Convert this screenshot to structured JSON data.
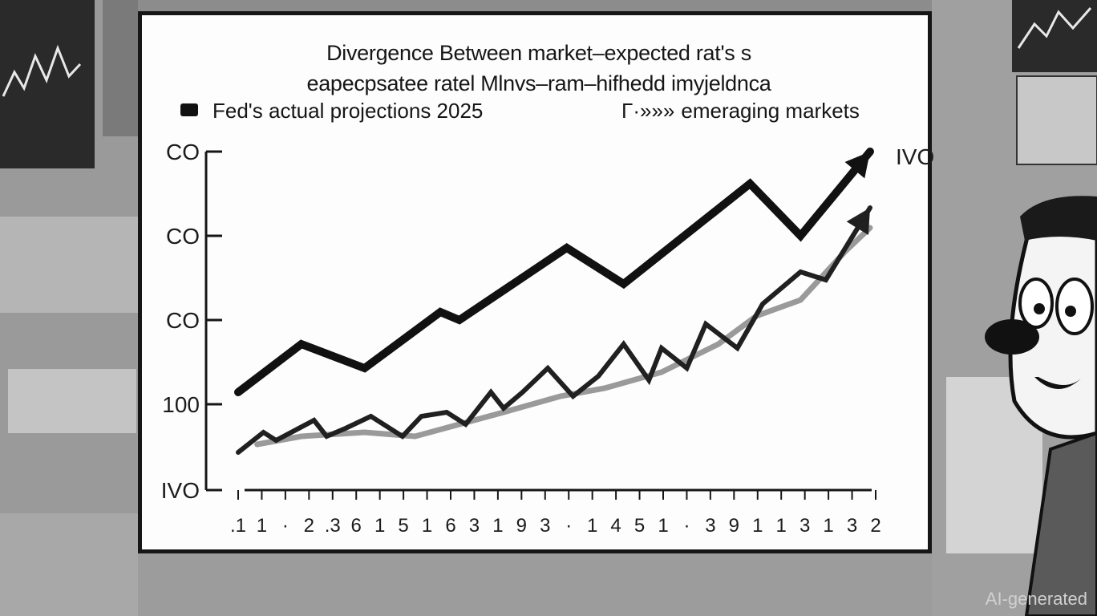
{
  "chart_data": {
    "type": "line",
    "title": "Divergence Between market–expected rat's s",
    "subtitle": "eapecpsatee ratel Mlnvs–ram–hifhedd imyjeldnca",
    "legend": [
      "Fed's actual projections  2025",
      "emeraging markets"
    ],
    "legend_marker_2": "Γ·»»»",
    "legend_placement": "top",
    "x_tick_labels": [
      ".1",
      "1",
      "·",
      "2",
      ".3",
      "6",
      "1",
      "5",
      "1",
      "6",
      "3",
      "1",
      "9",
      "3",
      "·",
      "1",
      "4",
      "5",
      "1",
      "·",
      "3",
      "9",
      "1",
      "1",
      "3",
      "1",
      "3",
      "2"
    ],
    "y_tick_labels": [
      "CO",
      "CO",
      "CO",
      "100",
      "IVO"
    ],
    "end_label": "IVO",
    "x_range": [
      0,
      10
    ],
    "y_range": [
      0,
      4
    ],
    "series": [
      {
        "name": "Fed's actual projections  2025",
        "color": "#111111",
        "x": [
          0,
          1,
          2,
          3.2,
          3.5,
          5.2,
          6.1,
          8.1,
          8.9,
          10
        ],
        "y": [
          1.0,
          1.6,
          1.3,
          2.0,
          1.9,
          2.8,
          2.35,
          3.6,
          2.95,
          4.0
        ]
      },
      {
        "name": "emeraging markets",
        "color": "#202020",
        "x": [
          0,
          0.4,
          0.6,
          1.2,
          1.4,
          1.7,
          2.1,
          2.6,
          2.9,
          3.3,
          3.6,
          4.0,
          4.2,
          4.5,
          4.9,
          5.3,
          5.7,
          6.1,
          6.5,
          6.7,
          7.1,
          7.4,
          7.9,
          8.3,
          8.9,
          9.3,
          10
        ],
        "y": [
          0.25,
          0.5,
          0.4,
          0.65,
          0.45,
          0.55,
          0.7,
          0.45,
          0.7,
          0.75,
          0.6,
          1.0,
          0.8,
          1.0,
          1.3,
          0.95,
          1.2,
          1.6,
          1.15,
          1.55,
          1.3,
          1.85,
          1.55,
          2.1,
          2.5,
          2.4,
          3.3
        ]
      },
      {
        "name": "",
        "color": "#9a9a9a",
        "x": [
          0.3,
          1.0,
          2.0,
          2.8,
          3.5,
          4.2,
          5.1,
          5.8,
          6.7,
          7.6,
          8.2,
          8.9,
          9.6,
          10
        ],
        "y": [
          0.35,
          0.45,
          0.5,
          0.45,
          0.6,
          0.75,
          0.95,
          1.05,
          1.25,
          1.6,
          1.95,
          2.15,
          2.75,
          3.05
        ]
      }
    ]
  },
  "footer": {
    "watermark": "AI-generated"
  }
}
